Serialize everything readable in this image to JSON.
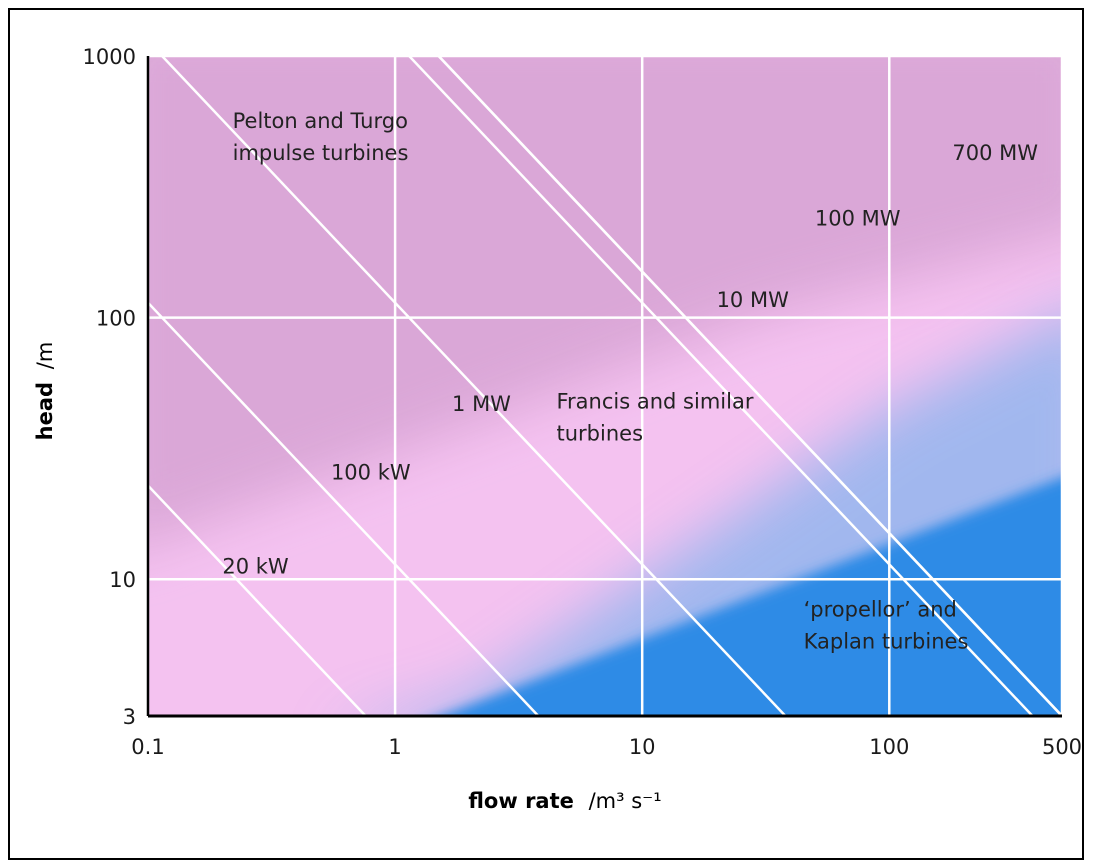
{
  "chart_data": {
    "type": "area",
    "title": "",
    "xlabel": "flow rate",
    "xlabel_unit": "/m³ s⁻¹",
    "ylabel": "head",
    "ylabel_unit": "/m",
    "x_scale": "log",
    "y_scale": "log",
    "xlim": [
      0.1,
      500
    ],
    "ylim": [
      3,
      1000
    ],
    "x_ticks": [
      {
        "value": 0.1,
        "label": "0.1"
      },
      {
        "value": 1,
        "label": "1"
      },
      {
        "value": 10,
        "label": "10"
      },
      {
        "value": 100,
        "label": "100"
      },
      {
        "value": 500,
        "label": "500"
      }
    ],
    "y_ticks": [
      {
        "value": 3,
        "label": "3"
      },
      {
        "value": 10,
        "label": "10"
      },
      {
        "value": 100,
        "label": "100"
      },
      {
        "value": 1000,
        "label": "1000"
      }
    ],
    "grid": true,
    "power_lines": [
      {
        "label": "20 kW",
        "x_range": [
          0.1,
          0.76
        ],
        "label_at": [
          0.2,
          10.5
        ]
      },
      {
        "label": "100 kW",
        "x_range": [
          0.1,
          3.8
        ],
        "label_at": [
          0.55,
          24
        ]
      },
      {
        "label": "1 MW",
        "x_range": [
          0.1,
          38
        ],
        "label_at": [
          1.7,
          44
        ]
      },
      {
        "label": "10 MW",
        "x_range": [
          0.1,
          380
        ],
        "label_at": [
          20,
          110
        ]
      },
      {
        "label": "100 MW",
        "x_range": [
          0.145,
          500
        ],
        "label_at": [
          50,
          225
        ]
      },
      {
        "label": "700 MW",
        "x_range": [
          1.0,
          500
        ],
        "label_at": [
          180,
          400
        ]
      }
    ],
    "regions": [
      {
        "label_lines": [
          "Pelton and Turgo",
          "impulse turbines"
        ],
        "label_at": [
          0.22,
          530
        ],
        "color": "#d9a6d6"
      },
      {
        "label_lines": [
          "Francis and similar",
          "turbines"
        ],
        "label_at": [
          4.5,
          45
        ],
        "color": "#f4c2f0"
      },
      {
        "label_lines": [
          "‘propellor’ and",
          "Kaplan turbines"
        ],
        "label_at": [
          45,
          7.2
        ],
        "color": "#2f8be6"
      }
    ],
    "colors": {
      "background": "#f4c2f0",
      "impulse_region": "#d9a6d6",
      "propeller_region": "#2f8be6",
      "grid": "#ffffff",
      "axis": "#000000"
    }
  }
}
